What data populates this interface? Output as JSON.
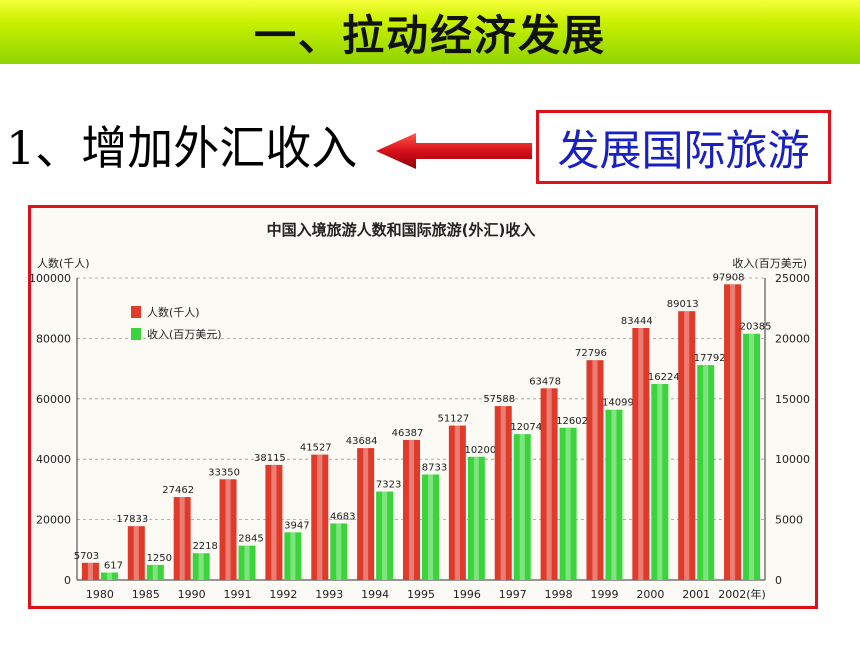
{
  "header": {
    "title": "一、拉动经济发展"
  },
  "point": {
    "text": "1、增加外汇收入"
  },
  "callout": {
    "text": "发展国际旅游"
  },
  "chart_data": {
    "type": "bar",
    "title": "中国入境旅游人数和国际旅游(外汇)收入",
    "y_left_label": "人数(千人)",
    "y_right_label": "收入(百万美元)",
    "categories": [
      "1980",
      "1985",
      "1990",
      "1991",
      "1992",
      "1993",
      "1994",
      "1995",
      "1996",
      "1997",
      "1998",
      "1999",
      "2000",
      "2001",
      "2002(年)"
    ],
    "left_ticks": [
      "0",
      "20000",
      "40000",
      "60000",
      "80000",
      "100000"
    ],
    "right_ticks": [
      "0",
      "5000",
      "10000",
      "15000",
      "20000",
      "25000"
    ],
    "ylim_left": [
      0,
      100000
    ],
    "ylim_right": [
      0,
      25000
    ],
    "grid": true,
    "legend_position": "top-left",
    "series": [
      {
        "name": "人数(千人)",
        "axis": "left",
        "color": "#e03a2a",
        "values": [
          5703,
          17833,
          27462,
          33350,
          38115,
          41527,
          43684,
          46387,
          51127,
          57588,
          63478,
          72796,
          83444,
          89013,
          97908
        ]
      },
      {
        "name": "收入(百万美元)",
        "axis": "right",
        "color": "#3cd43c",
        "values": [
          617,
          1250,
          2218,
          2845,
          3947,
          4683,
          7323,
          8733,
          10200,
          12074,
          12602,
          14099,
          16224,
          17792,
          20385
        ]
      }
    ]
  }
}
